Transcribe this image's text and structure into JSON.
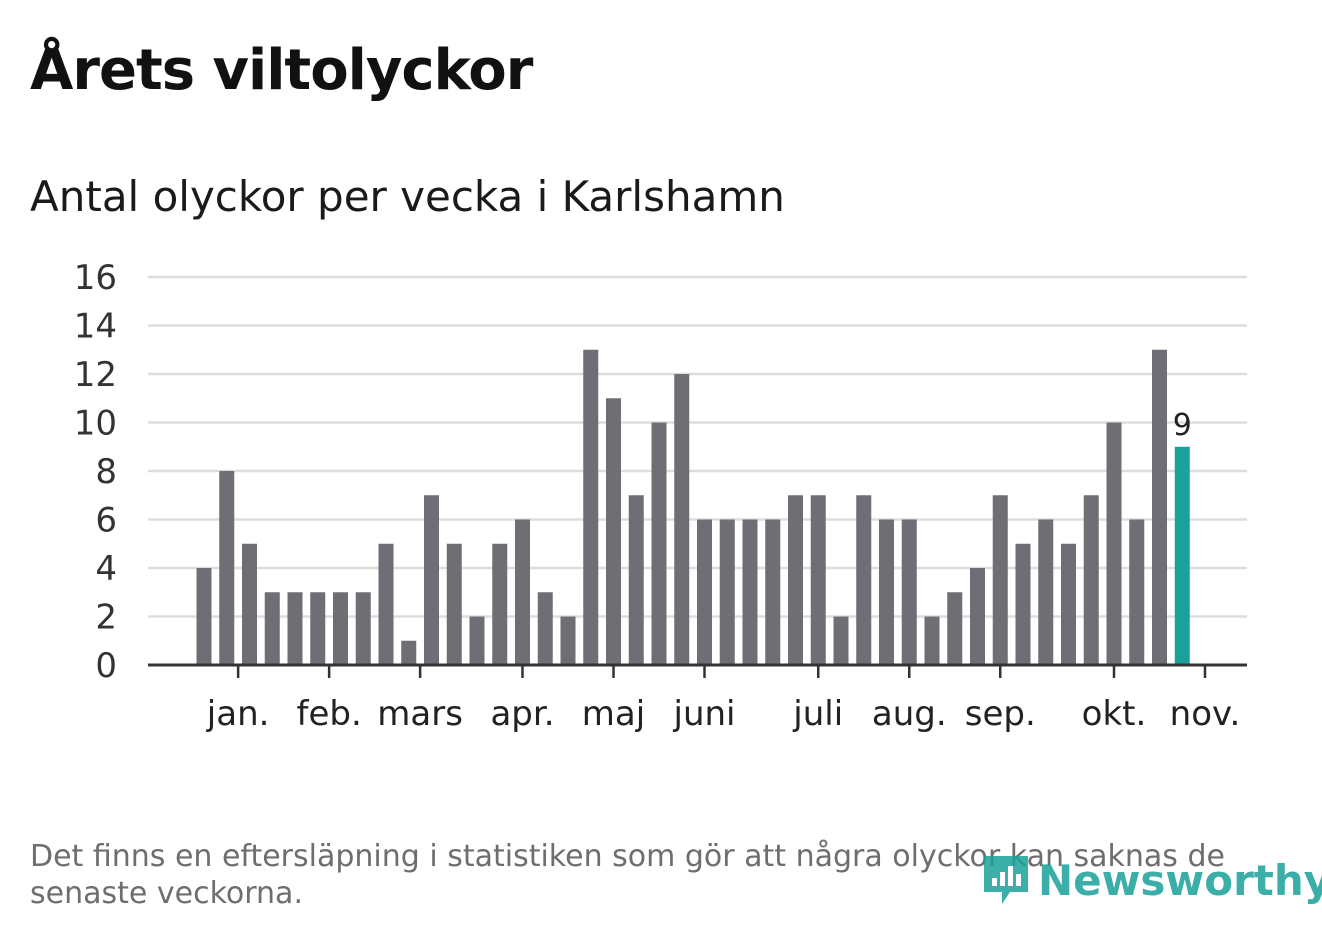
{
  "title": "Årets viltolyckor",
  "subtitle": "Antal olyckor per vecka i Karlshamn",
  "note": "Det finns en eftersläpning i statistiken som gör att några olyckor kan saknas de senaste veckorna.",
  "brand": {
    "name": "Newsworthy",
    "color": "#1aa19a"
  },
  "colors": {
    "bar": "#6f6e74",
    "highlight": "#1aa19a",
    "grid": "#dddddd",
    "axis": "#333333"
  },
  "chart_data": {
    "type": "bar",
    "values": [
      4,
      8,
      5,
      3,
      3,
      3,
      3,
      3,
      5,
      1,
      7,
      5,
      2,
      5,
      6,
      3,
      2,
      13,
      11,
      7,
      10,
      12,
      6,
      6,
      6,
      6,
      7,
      7,
      2,
      7,
      6,
      6,
      2,
      3,
      4,
      7,
      5,
      6,
      5,
      7,
      10,
      6,
      13,
      9
    ],
    "highlight_index": 43,
    "highlight_label": "9",
    "ylim": [
      0,
      16
    ],
    "yticks": [
      0,
      2,
      4,
      6,
      8,
      10,
      12,
      14,
      16
    ],
    "grid": true,
    "month_labels": [
      {
        "label": "jan.",
        "x": 2.5
      },
      {
        "label": "feb.",
        "x": 6.5
      },
      {
        "label": "mars",
        "x": 10.5
      },
      {
        "label": "apr.",
        "x": 15
      },
      {
        "label": "maj",
        "x": 19
      },
      {
        "label": "juni",
        "x": 23
      },
      {
        "label": "juli",
        "x": 28
      },
      {
        "label": "aug.",
        "x": 32
      },
      {
        "label": "sep.",
        "x": 36
      },
      {
        "label": "okt.",
        "x": 41
      },
      {
        "label": "nov.",
        "x": 45
      }
    ]
  }
}
